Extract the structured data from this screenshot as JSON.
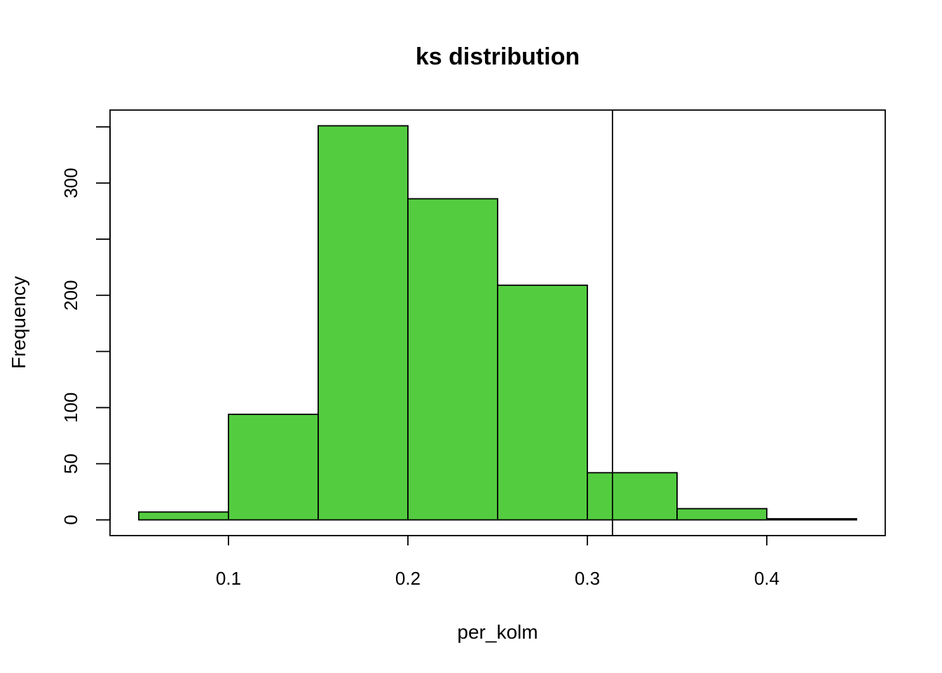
{
  "chart_data": {
    "type": "bar",
    "title": "ks distribution",
    "xlabel": "per_kolm",
    "ylabel": "Frequency",
    "bins": [
      {
        "x0": 0.05,
        "x1": 0.1,
        "count": 7
      },
      {
        "x0": 0.1,
        "x1": 0.15,
        "count": 94
      },
      {
        "x0": 0.15,
        "x1": 0.2,
        "count": 351
      },
      {
        "x0": 0.2,
        "x1": 0.25,
        "count": 286
      },
      {
        "x0": 0.25,
        "x1": 0.3,
        "count": 209
      },
      {
        "x0": 0.3,
        "x1": 0.35,
        "count": 42
      },
      {
        "x0": 0.35,
        "x1": 0.4,
        "count": 10
      },
      {
        "x0": 0.4,
        "x1": 0.45,
        "count": 1
      }
    ],
    "xticks": [
      0.1,
      0.2,
      0.3,
      0.4
    ],
    "xtick_labels": [
      "0.1",
      "0.2",
      "0.3",
      "0.4"
    ],
    "yticks": [
      0,
      50,
      100,
      150,
      200,
      250,
      300,
      350
    ],
    "ytick_labels": [
      "0",
      "50",
      "100",
      "",
      "200",
      "",
      "300",
      ""
    ],
    "xlim": [
      0.034,
      0.466
    ],
    "ylim": [
      -14,
      365
    ],
    "vline_x": 0.314,
    "bar_color": "#54CC40",
    "edge_color": "#000000",
    "grid": false,
    "legend": "none"
  }
}
